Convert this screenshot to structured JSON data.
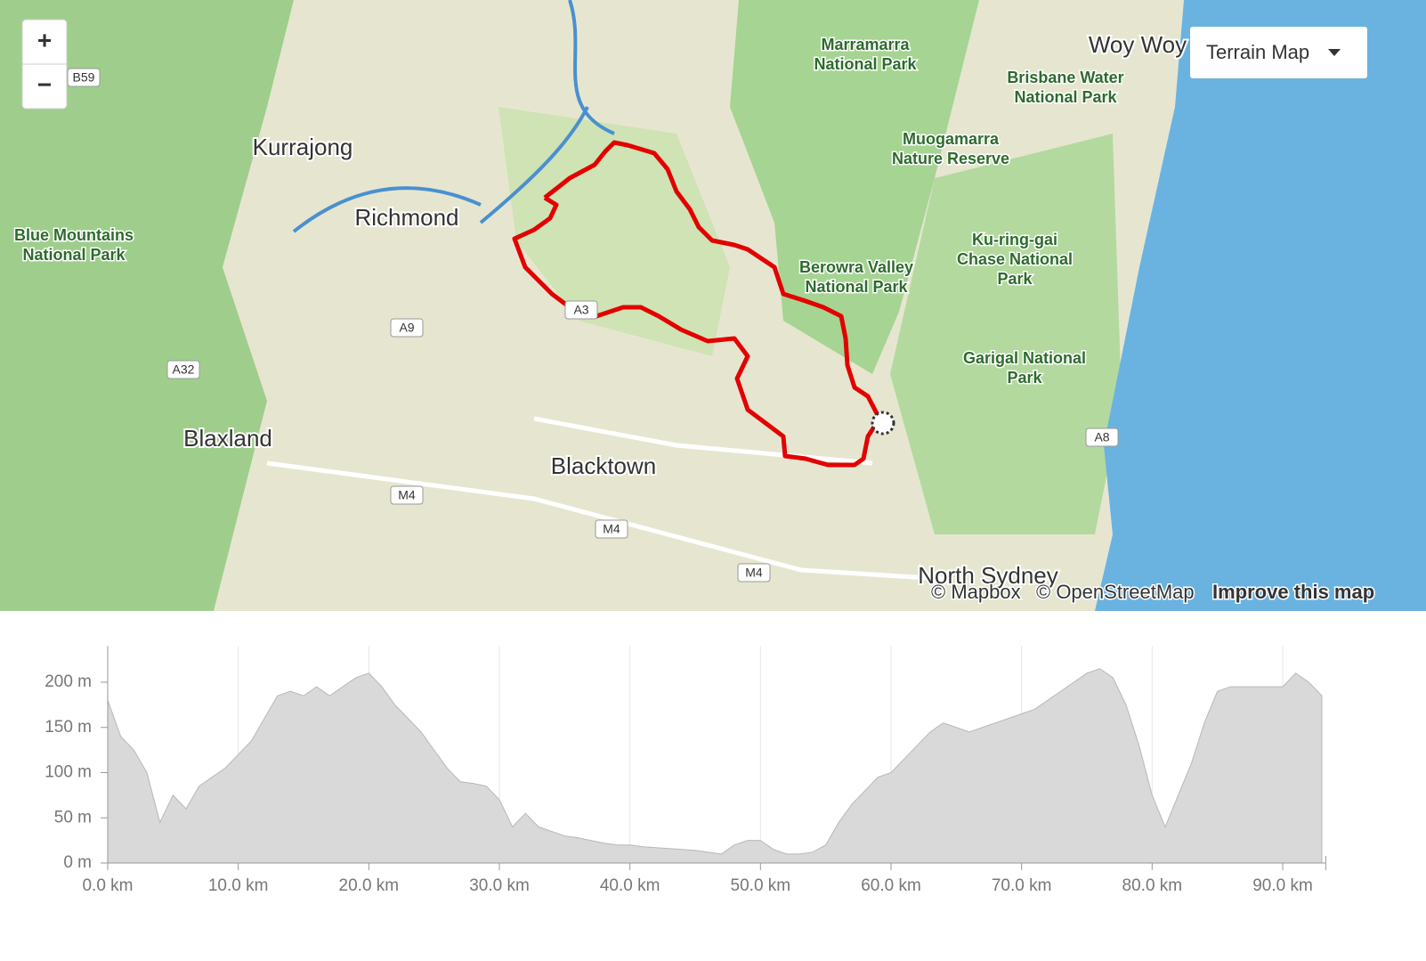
{
  "map": {
    "zoom_in": "+",
    "zoom_out": "−",
    "layer_button": "Terrain Map",
    "towns": [
      "Kurrajong",
      "Richmond",
      "Blaxland",
      "Blacktown",
      "Woy Woy",
      "North Sydney"
    ],
    "parks": [
      [
        "Marramarra",
        "National Park"
      ],
      [
        "Brisbane Water",
        "National Park"
      ],
      [
        "Muogamarra",
        "Nature Reserve"
      ],
      [
        "Blue Mountains",
        "National Park"
      ],
      [
        "Ku-ring-gai",
        "Chase National",
        "Park"
      ],
      [
        "Berowra Valley",
        "National Park"
      ],
      [
        "Garigal National",
        "Park"
      ]
    ],
    "roads": [
      "B59",
      "A9",
      "A32",
      "A3",
      "M4",
      "M4",
      "M4",
      "A8"
    ],
    "attribution": [
      "© Mapbox",
      "© OpenStreetMap",
      "Improve this map"
    ]
  },
  "chart_data": {
    "type": "area",
    "color": "#d9d9d9",
    "x": [
      0,
      1,
      2,
      3,
      4,
      5,
      6,
      7,
      8,
      9,
      10,
      11,
      12,
      13,
      14,
      15,
      16,
      17,
      18,
      19,
      20,
      21,
      22,
      23,
      24,
      25,
      26,
      27,
      28,
      29,
      30,
      31,
      32,
      33,
      34,
      35,
      36,
      37,
      38,
      39,
      40,
      41,
      42,
      43,
      44,
      45,
      46,
      47,
      48,
      49,
      50,
      51,
      52,
      53,
      54,
      55,
      56,
      57,
      58,
      59,
      60,
      61,
      62,
      63,
      64,
      65,
      66,
      67,
      68,
      69,
      70,
      71,
      72,
      73,
      74,
      75,
      76,
      77,
      78,
      79,
      80,
      81,
      82,
      83,
      84,
      85,
      86,
      87,
      88,
      89,
      90,
      91,
      92,
      93
    ],
    "values": [
      180,
      140,
      125,
      100,
      45,
      75,
      60,
      85,
      95,
      105,
      120,
      135,
      160,
      185,
      190,
      185,
      195,
      185,
      195,
      205,
      210,
      195,
      175,
      160,
      145,
      125,
      105,
      90,
      88,
      85,
      70,
      40,
      55,
      40,
      35,
      30,
      28,
      25,
      22,
      20,
      20,
      18,
      17,
      16,
      15,
      14,
      12,
      10,
      20,
      25,
      25,
      15,
      10,
      10,
      12,
      20,
      45,
      65,
      80,
      95,
      100,
      115,
      130,
      145,
      155,
      150,
      145,
      150,
      155,
      160,
      165,
      170,
      180,
      190,
      200,
      210,
      215,
      205,
      175,
      130,
      75,
      40,
      75,
      110,
      155,
      190,
      195,
      195,
      195,
      195,
      195,
      210,
      200,
      185
    ],
    "xlim": [
      0,
      93.3
    ],
    "ylim": [
      0,
      240
    ],
    "xticks": [
      {
        "value": 0,
        "label": "0.0 km"
      },
      {
        "value": 10,
        "label": "10.0 km"
      },
      {
        "value": 20,
        "label": "20.0 km"
      },
      {
        "value": 30,
        "label": "30.0 km"
      },
      {
        "value": 40,
        "label": "40.0 km"
      },
      {
        "value": 50,
        "label": "50.0 km"
      },
      {
        "value": 60,
        "label": "60.0 km"
      },
      {
        "value": 70,
        "label": "70.0 km"
      },
      {
        "value": 80,
        "label": "80.0 km"
      },
      {
        "value": 90,
        "label": "90.0 km"
      }
    ],
    "yticks": [
      {
        "value": 0,
        "label": "0 m"
      },
      {
        "value": 50,
        "label": "50 m"
      },
      {
        "value": 100,
        "label": "100 m"
      },
      {
        "value": 150,
        "label": "150 m"
      },
      {
        "value": 200,
        "label": "200 m"
      }
    ],
    "grid": true
  }
}
